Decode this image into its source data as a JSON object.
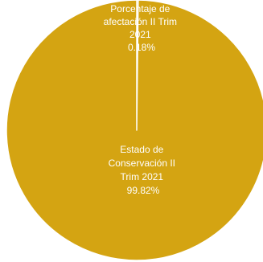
{
  "chart_data": {
    "type": "pie",
    "slices": [
      {
        "label_lines": [
          "Porcentaje de",
          "afectación II Trim",
          "2021"
        ],
        "value_label": "0.18%",
        "value": 0.18,
        "color": "#d4a412"
      },
      {
        "label_lines": [
          "Estado de",
          "Conservación II",
          "Trim 2021"
        ],
        "value_label": "99.82%",
        "value": 99.82,
        "color": "#d4a412"
      }
    ],
    "separator_color": "#ffffff"
  }
}
